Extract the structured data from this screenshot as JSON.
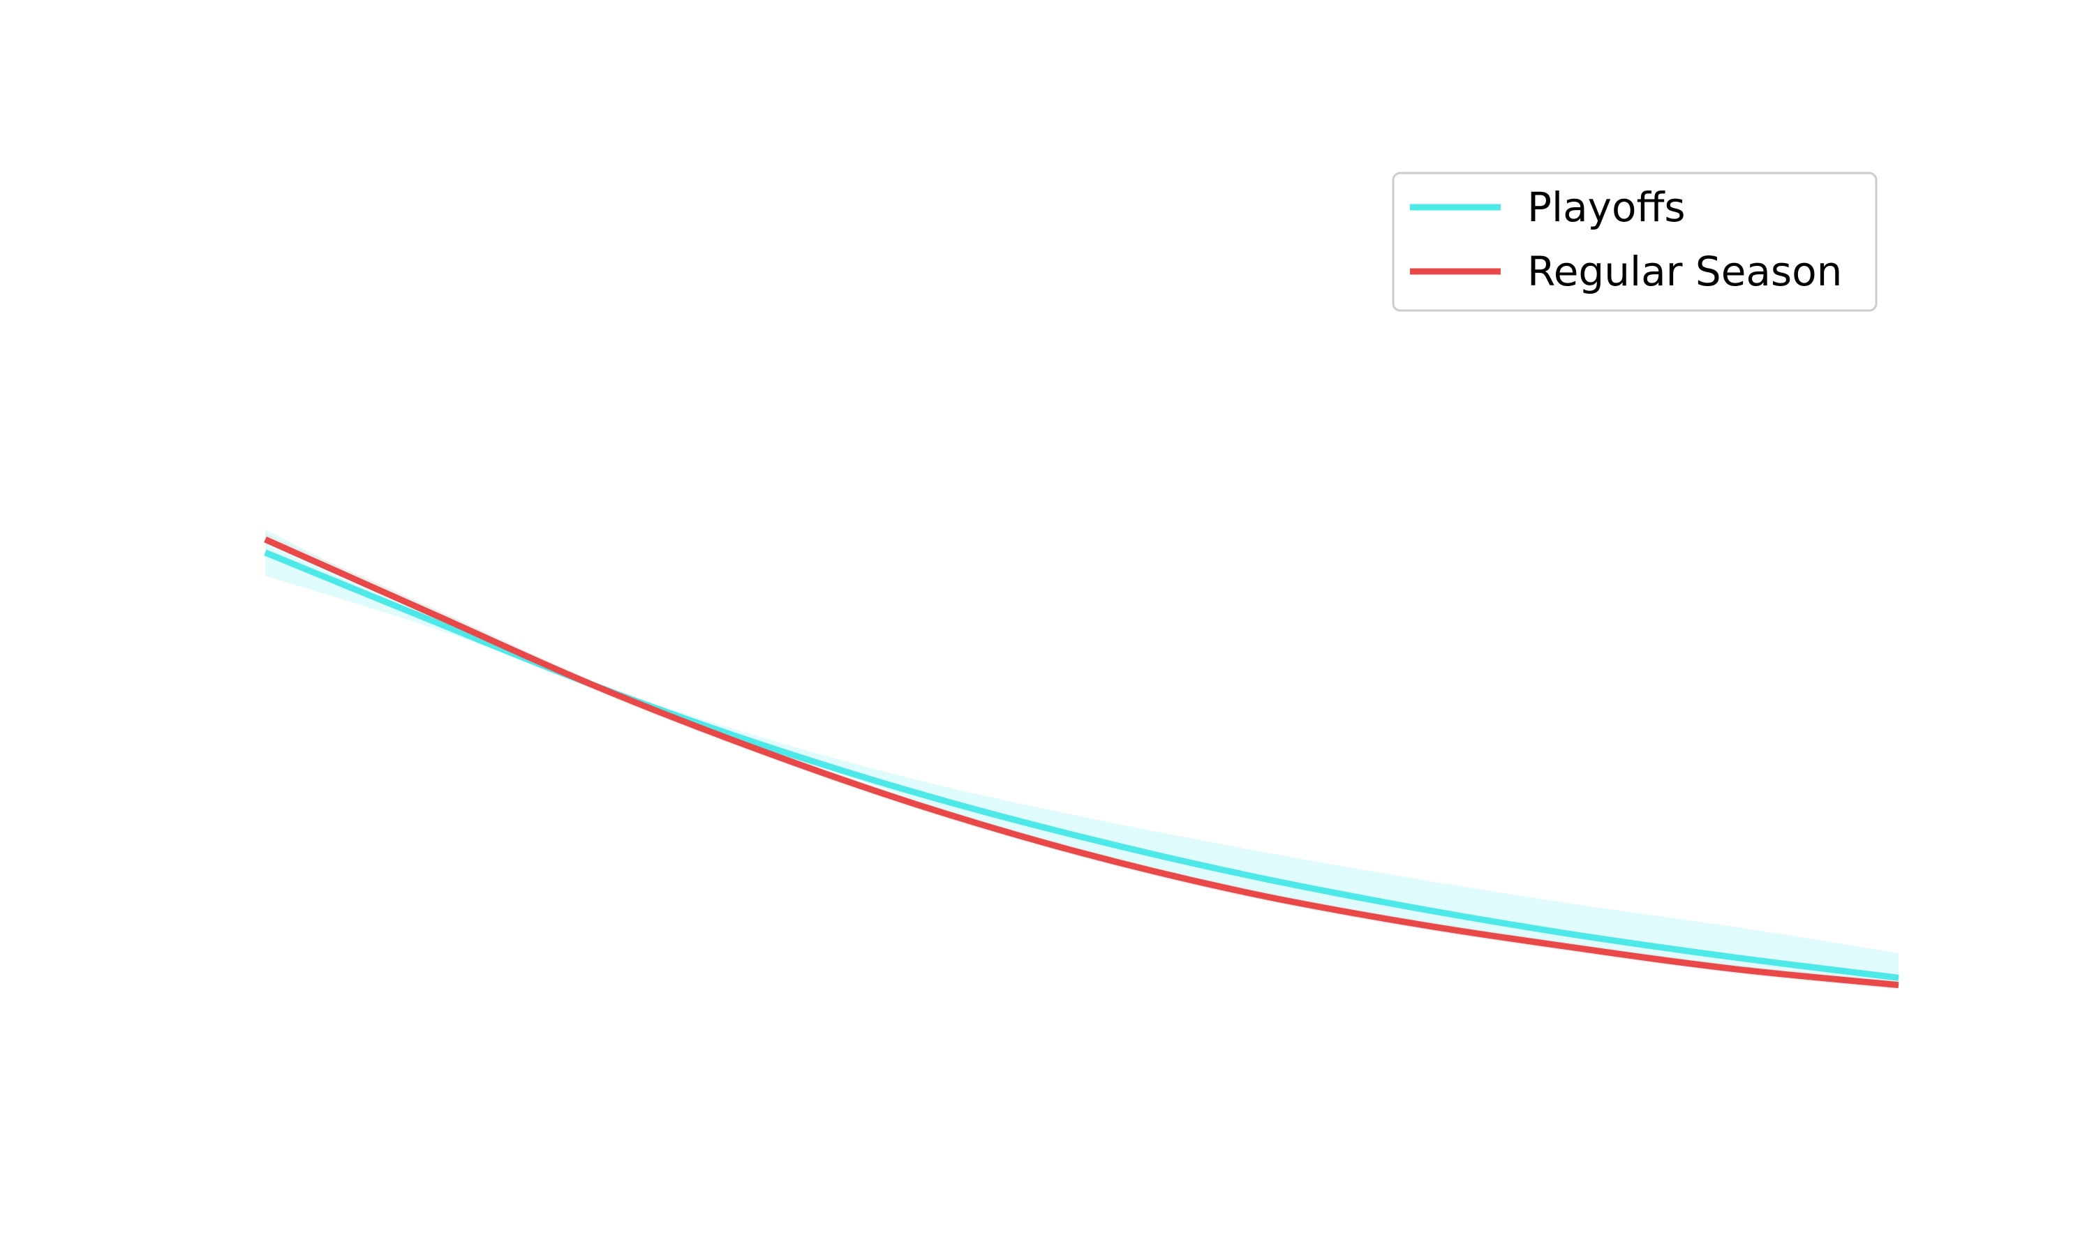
{
  "chart_data": {
    "type": "line",
    "title": "",
    "xlabel": "",
    "ylabel": "",
    "axes_visible": false,
    "grid": false,
    "legend_position": "top-right",
    "x": [
      0,
      0.1,
      0.2,
      0.3,
      0.4,
      0.5,
      0.6,
      0.7,
      0.8,
      0.9,
      1.0
    ],
    "series": [
      {
        "name": "Playoffs",
        "color": "#4de8e8",
        "band_color": "#e0fbfb",
        "values": [
          0.627,
          0.581,
          0.536,
          0.496,
          0.461,
          0.431,
          0.405,
          0.383,
          0.364,
          0.348,
          0.334
        ],
        "lower": [
          0.611,
          0.576,
          0.536,
          0.496,
          0.456,
          0.421,
          0.393,
          0.372,
          0.356,
          0.341,
          0.327
        ],
        "upper": [
          0.643,
          0.586,
          0.538,
          0.501,
          0.47,
          0.445,
          0.423,
          0.403,
          0.385,
          0.369,
          0.351
        ]
      },
      {
        "name": "Regular Season",
        "color": "#e84848",
        "band_color": "#e6e6e6",
        "values": [
          0.636,
          0.586,
          0.536,
          0.492,
          0.453,
          0.42,
          0.393,
          0.372,
          0.355,
          0.34,
          0.329
        ],
        "lower": [
          0.634,
          0.584,
          0.533,
          0.489,
          0.45,
          0.417,
          0.39,
          0.369,
          0.352,
          0.337,
          0.326
        ],
        "upper": [
          0.64,
          0.59,
          0.539,
          0.495,
          0.456,
          0.423,
          0.396,
          0.375,
          0.358,
          0.343,
          0.332
        ]
      }
    ],
    "xlim": [
      0,
      1
    ],
    "ylim": [
      0.2,
      0.95
    ]
  }
}
